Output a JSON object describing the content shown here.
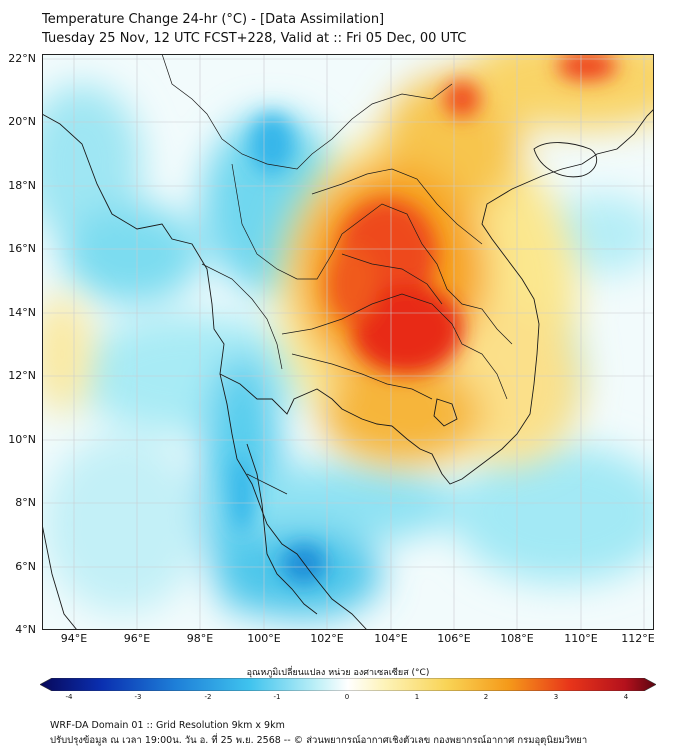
{
  "header": {
    "title": "Temperature Change 24-hr (°C) - [Data Assimilation]",
    "subtitle": "Tuesday 25 Nov, 12 UTC FCST+228, Valid at :: Fri 05 Dec, 00 UTC"
  },
  "axes": {
    "lat_labels": [
      "22°N",
      "20°N",
      "18°N",
      "16°N",
      "14°N",
      "12°N",
      "10°N",
      "8°N",
      "6°N",
      "4°N"
    ],
    "lon_labels": [
      "94°E",
      "96°E",
      "98°E",
      "100°E",
      "102°E",
      "104°E",
      "106°E",
      "108°E",
      "110°E",
      "112°E"
    ],
    "lat_range": [
      4,
      22.1
    ],
    "lon_range": [
      93,
      112.3
    ]
  },
  "colorbar": {
    "title": "อุณหภูมิเปลี่ยนแปลง หน่วย องศาเซลเซียส (°C)",
    "labels": [
      "-4",
      "-3",
      "-2",
      "-1",
      "0",
      "1",
      "2",
      "3",
      "4"
    ],
    "min": -4,
    "max": 4
  },
  "footer": {
    "line1": "WRF-DA Domain 01 :: Grid Resolution 9km x 9km",
    "line2": "ปรับปรุงข้อมูล ณ เวลา 19:00น. วัน อ. ที่ 25 พ.ย. 2568 -- © ส่วนพยากรณ์อากาศเชิงตัวเลข กองพยากรณ์อากาศ กรมอุตุนิยมวิทยา"
  },
  "colors": {
    "warm_core": "#e82a18",
    "warm_mid": "#f7a21c",
    "warm_light": "#fbe78e",
    "cool_light": "#c8f2f6",
    "cool_mid": "#4fd0ee",
    "cool_core": "#1e8ed8"
  }
}
